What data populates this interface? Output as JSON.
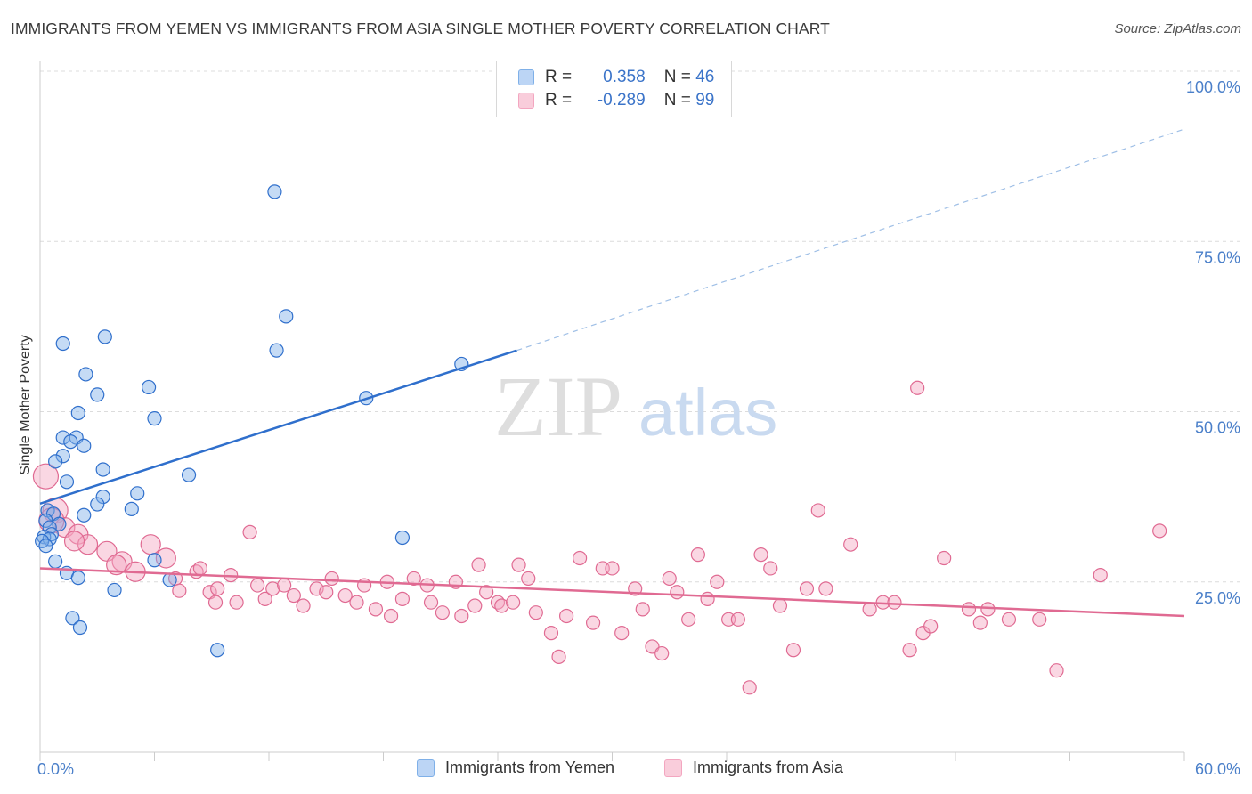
{
  "title": "IMMIGRANTS FROM YEMEN VS IMMIGRANTS FROM ASIA SINGLE MOTHER POVERTY CORRELATION CHART",
  "source": "Source: ZipAtlas.com",
  "watermark": {
    "zip": "ZIP",
    "atlas": "atlas"
  },
  "legend": {
    "rows": [
      {
        "r_label": "R =",
        "r_value": "0.358",
        "n_label": "N =",
        "n_value": "46"
      },
      {
        "r_label": "R =",
        "r_value": "-0.289",
        "n_label": "N =",
        "n_value": "99"
      }
    ]
  },
  "bottom_legend": {
    "yemen": "Immigrants from Yemen",
    "asia": "Immigrants from Asia"
  },
  "chart_data": {
    "type": "scatter",
    "title": "IMMIGRANTS FROM YEMEN VS IMMIGRANTS FROM ASIA SINGLE MOTHER POVERTY CORRELATION CHART",
    "xlabel": "",
    "ylabel": "Single Mother Poverty",
    "xlim": [
      0,
      60
    ],
    "ylim": [
      0,
      100
    ],
    "x_ticks_labeled": [
      "0.0%",
      "60.0%"
    ],
    "y_ticks": [
      "100.0%",
      "75.0%",
      "50.0%",
      "25.0%"
    ],
    "grid": "horizontal dashed",
    "legend_position": "top-center",
    "colors": {
      "yemen": "#7fb0e8",
      "yemen_line": "#2f6fcc",
      "asia": "#f3a6c0",
      "asia_line": "#e06a92"
    },
    "series": [
      {
        "name": "Immigrants from Yemen",
        "r": 0.358,
        "n": 46,
        "trend": {
          "x0": 0,
          "y0": 36.5,
          "x1": 25,
          "y1": 59.0,
          "dashed_to_x": 60,
          "dashed_to_y": 91.5
        },
        "points": [
          [
            12.3,
            82.3
          ],
          [
            12.9,
            64.0
          ],
          [
            12.4,
            59.0
          ],
          [
            22.1,
            57.0
          ],
          [
            1.2,
            60.0
          ],
          [
            3.4,
            61.0
          ],
          [
            2.4,
            55.5
          ],
          [
            5.7,
            53.6
          ],
          [
            3.0,
            52.5
          ],
          [
            17.1,
            52.0
          ],
          [
            2.0,
            49.8
          ],
          [
            6.0,
            49.0
          ],
          [
            1.2,
            46.2
          ],
          [
            1.9,
            46.2
          ],
          [
            1.6,
            45.6
          ],
          [
            2.3,
            45.0
          ],
          [
            1.2,
            43.5
          ],
          [
            0.8,
            42.7
          ],
          [
            3.3,
            41.5
          ],
          [
            7.8,
            40.7
          ],
          [
            1.4,
            39.7
          ],
          [
            5.1,
            38.0
          ],
          [
            3.3,
            37.5
          ],
          [
            3.0,
            36.4
          ],
          [
            4.8,
            35.7
          ],
          [
            0.4,
            35.5
          ],
          [
            0.7,
            35.0
          ],
          [
            2.3,
            34.8
          ],
          [
            0.3,
            34.0
          ],
          [
            1.0,
            33.5
          ],
          [
            0.5,
            33.0
          ],
          [
            0.6,
            32.0
          ],
          [
            0.2,
            31.6
          ],
          [
            0.5,
            31.3
          ],
          [
            0.1,
            31.0
          ],
          [
            19.0,
            31.5
          ],
          [
            0.3,
            30.3
          ],
          [
            0.8,
            28.0
          ],
          [
            6.0,
            28.2
          ],
          [
            1.4,
            26.3
          ],
          [
            2.0,
            25.6
          ],
          [
            6.8,
            25.3
          ],
          [
            3.9,
            23.8
          ],
          [
            1.7,
            19.7
          ],
          [
            2.1,
            18.3
          ],
          [
            9.3,
            15.0
          ]
        ]
      },
      {
        "name": "Immigrants from Asia",
        "r": -0.289,
        "n": 99,
        "trend": {
          "x0": 0,
          "y0": 27.0,
          "x1": 60,
          "y1": 20.0
        },
        "points": [
          [
            0.3,
            40.5
          ],
          [
            0.8,
            35.5
          ],
          [
            1.3,
            33.0
          ],
          [
            2.0,
            32.0
          ],
          [
            2.5,
            30.5
          ],
          [
            3.5,
            29.5
          ],
          [
            4.3,
            28.0
          ],
          [
            5.0,
            26.5
          ],
          [
            5.8,
            30.5
          ],
          [
            6.6,
            28.5
          ],
          [
            7.1,
            25.5
          ],
          [
            7.3,
            23.7
          ],
          [
            8.2,
            26.5
          ],
          [
            8.4,
            27.0
          ],
          [
            8.9,
            23.5
          ],
          [
            9.3,
            24.0
          ],
          [
            9.2,
            22.0
          ],
          [
            10.0,
            26.0
          ],
          [
            10.3,
            22.0
          ],
          [
            11.0,
            32.3
          ],
          [
            11.4,
            24.5
          ],
          [
            11.8,
            22.5
          ],
          [
            12.2,
            24.0
          ],
          [
            12.8,
            24.5
          ],
          [
            13.3,
            23.0
          ],
          [
            13.8,
            21.5
          ],
          [
            14.5,
            24.0
          ],
          [
            15.0,
            23.5
          ],
          [
            15.3,
            25.5
          ],
          [
            16.0,
            23.0
          ],
          [
            16.6,
            22.0
          ],
          [
            17.0,
            24.5
          ],
          [
            17.6,
            21.0
          ],
          [
            18.2,
            25.0
          ],
          [
            18.4,
            20.0
          ],
          [
            19.0,
            22.5
          ],
          [
            19.6,
            25.5
          ],
          [
            20.3,
            24.5
          ],
          [
            20.5,
            22.0
          ],
          [
            21.1,
            20.5
          ],
          [
            21.8,
            25.0
          ],
          [
            22.1,
            20.0
          ],
          [
            22.8,
            21.5
          ],
          [
            23.0,
            27.5
          ],
          [
            23.4,
            23.5
          ],
          [
            24.0,
            22.0
          ],
          [
            24.2,
            21.5
          ],
          [
            24.8,
            22.0
          ],
          [
            25.1,
            27.5
          ],
          [
            25.6,
            25.5
          ],
          [
            26.0,
            20.5
          ],
          [
            26.8,
            17.5
          ],
          [
            27.2,
            14.0
          ],
          [
            27.6,
            20.0
          ],
          [
            28.3,
            28.5
          ],
          [
            29.0,
            19.0
          ],
          [
            29.5,
            27.0
          ],
          [
            30.0,
            27.0
          ],
          [
            30.5,
            17.5
          ],
          [
            31.2,
            24.0
          ],
          [
            31.6,
            21.0
          ],
          [
            32.1,
            15.5
          ],
          [
            32.6,
            14.5
          ],
          [
            33.0,
            25.5
          ],
          [
            33.4,
            23.5
          ],
          [
            34.0,
            19.5
          ],
          [
            34.5,
            29.0
          ],
          [
            35.0,
            22.5
          ],
          [
            35.5,
            25.0
          ],
          [
            36.1,
            19.5
          ],
          [
            36.6,
            19.5
          ],
          [
            37.2,
            9.5
          ],
          [
            37.8,
            29.0
          ],
          [
            38.3,
            27.0
          ],
          [
            38.8,
            21.5
          ],
          [
            39.5,
            15.0
          ],
          [
            40.2,
            24.0
          ],
          [
            40.8,
            35.5
          ],
          [
            41.2,
            24.0
          ],
          [
            42.5,
            30.5
          ],
          [
            43.5,
            21.0
          ],
          [
            44.2,
            22.0
          ],
          [
            44.8,
            22.0
          ],
          [
            45.6,
            15.0
          ],
          [
            46.3,
            17.5
          ],
          [
            46.7,
            18.5
          ],
          [
            47.4,
            28.5
          ],
          [
            46.0,
            53.5
          ],
          [
            48.7,
            21.0
          ],
          [
            49.3,
            19.0
          ],
          [
            49.7,
            21.0
          ],
          [
            50.8,
            19.5
          ],
          [
            52.4,
            19.5
          ],
          [
            53.3,
            12.0
          ],
          [
            55.6,
            26.0
          ],
          [
            58.7,
            32.5
          ],
          [
            0.6,
            34.0
          ],
          [
            1.8,
            31.0
          ],
          [
            4.0,
            27.5
          ]
        ]
      }
    ]
  }
}
